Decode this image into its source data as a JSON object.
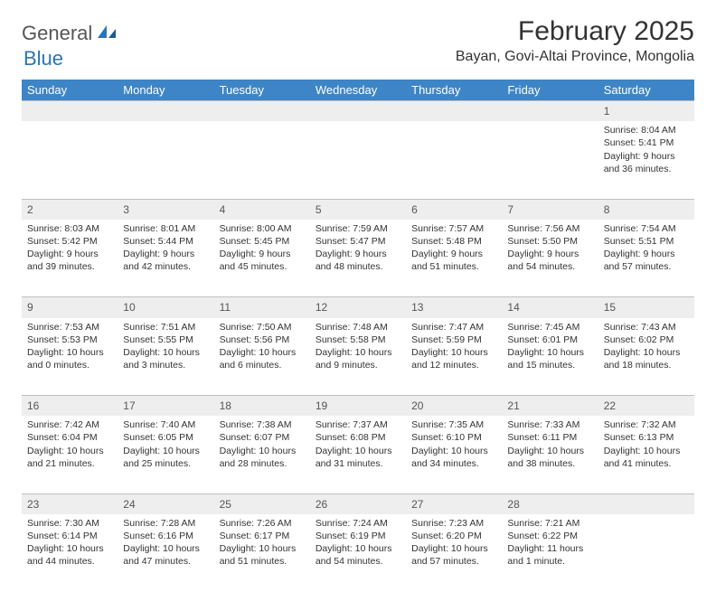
{
  "logo": {
    "text1": "General",
    "text2": "Blue"
  },
  "title": "February 2025",
  "location": "Bayan, Govi-Altai Province, Mongolia",
  "colors": {
    "header_bg": "#3d85c6",
    "header_text": "#ffffff",
    "daynum_bg": "#eeeeee",
    "border": "#bfbfbf",
    "logo_blue": "#2b73b8",
    "body_text": "#333333"
  },
  "weekdays": [
    "Sunday",
    "Monday",
    "Tuesday",
    "Wednesday",
    "Thursday",
    "Friday",
    "Saturday"
  ],
  "weeks": [
    {
      "nums": [
        "",
        "",
        "",
        "",
        "",
        "",
        "1"
      ],
      "cells": [
        null,
        null,
        null,
        null,
        null,
        null,
        {
          "sunrise": "Sunrise: 8:04 AM",
          "sunset": "Sunset: 5:41 PM",
          "daylight": "Daylight: 9 hours and 36 minutes."
        }
      ]
    },
    {
      "nums": [
        "2",
        "3",
        "4",
        "5",
        "6",
        "7",
        "8"
      ],
      "cells": [
        {
          "sunrise": "Sunrise: 8:03 AM",
          "sunset": "Sunset: 5:42 PM",
          "daylight": "Daylight: 9 hours and 39 minutes."
        },
        {
          "sunrise": "Sunrise: 8:01 AM",
          "sunset": "Sunset: 5:44 PM",
          "daylight": "Daylight: 9 hours and 42 minutes."
        },
        {
          "sunrise": "Sunrise: 8:00 AM",
          "sunset": "Sunset: 5:45 PM",
          "daylight": "Daylight: 9 hours and 45 minutes."
        },
        {
          "sunrise": "Sunrise: 7:59 AM",
          "sunset": "Sunset: 5:47 PM",
          "daylight": "Daylight: 9 hours and 48 minutes."
        },
        {
          "sunrise": "Sunrise: 7:57 AM",
          "sunset": "Sunset: 5:48 PM",
          "daylight": "Daylight: 9 hours and 51 minutes."
        },
        {
          "sunrise": "Sunrise: 7:56 AM",
          "sunset": "Sunset: 5:50 PM",
          "daylight": "Daylight: 9 hours and 54 minutes."
        },
        {
          "sunrise": "Sunrise: 7:54 AM",
          "sunset": "Sunset: 5:51 PM",
          "daylight": "Daylight: 9 hours and 57 minutes."
        }
      ]
    },
    {
      "nums": [
        "9",
        "10",
        "11",
        "12",
        "13",
        "14",
        "15"
      ],
      "cells": [
        {
          "sunrise": "Sunrise: 7:53 AM",
          "sunset": "Sunset: 5:53 PM",
          "daylight": "Daylight: 10 hours and 0 minutes."
        },
        {
          "sunrise": "Sunrise: 7:51 AM",
          "sunset": "Sunset: 5:55 PM",
          "daylight": "Daylight: 10 hours and 3 minutes."
        },
        {
          "sunrise": "Sunrise: 7:50 AM",
          "sunset": "Sunset: 5:56 PM",
          "daylight": "Daylight: 10 hours and 6 minutes."
        },
        {
          "sunrise": "Sunrise: 7:48 AM",
          "sunset": "Sunset: 5:58 PM",
          "daylight": "Daylight: 10 hours and 9 minutes."
        },
        {
          "sunrise": "Sunrise: 7:47 AM",
          "sunset": "Sunset: 5:59 PM",
          "daylight": "Daylight: 10 hours and 12 minutes."
        },
        {
          "sunrise": "Sunrise: 7:45 AM",
          "sunset": "Sunset: 6:01 PM",
          "daylight": "Daylight: 10 hours and 15 minutes."
        },
        {
          "sunrise": "Sunrise: 7:43 AM",
          "sunset": "Sunset: 6:02 PM",
          "daylight": "Daylight: 10 hours and 18 minutes."
        }
      ]
    },
    {
      "nums": [
        "16",
        "17",
        "18",
        "19",
        "20",
        "21",
        "22"
      ],
      "cells": [
        {
          "sunrise": "Sunrise: 7:42 AM",
          "sunset": "Sunset: 6:04 PM",
          "daylight": "Daylight: 10 hours and 21 minutes."
        },
        {
          "sunrise": "Sunrise: 7:40 AM",
          "sunset": "Sunset: 6:05 PM",
          "daylight": "Daylight: 10 hours and 25 minutes."
        },
        {
          "sunrise": "Sunrise: 7:38 AM",
          "sunset": "Sunset: 6:07 PM",
          "daylight": "Daylight: 10 hours and 28 minutes."
        },
        {
          "sunrise": "Sunrise: 7:37 AM",
          "sunset": "Sunset: 6:08 PM",
          "daylight": "Daylight: 10 hours and 31 minutes."
        },
        {
          "sunrise": "Sunrise: 7:35 AM",
          "sunset": "Sunset: 6:10 PM",
          "daylight": "Daylight: 10 hours and 34 minutes."
        },
        {
          "sunrise": "Sunrise: 7:33 AM",
          "sunset": "Sunset: 6:11 PM",
          "daylight": "Daylight: 10 hours and 38 minutes."
        },
        {
          "sunrise": "Sunrise: 7:32 AM",
          "sunset": "Sunset: 6:13 PM",
          "daylight": "Daylight: 10 hours and 41 minutes."
        }
      ]
    },
    {
      "nums": [
        "23",
        "24",
        "25",
        "26",
        "27",
        "28",
        ""
      ],
      "cells": [
        {
          "sunrise": "Sunrise: 7:30 AM",
          "sunset": "Sunset: 6:14 PM",
          "daylight": "Daylight: 10 hours and 44 minutes."
        },
        {
          "sunrise": "Sunrise: 7:28 AM",
          "sunset": "Sunset: 6:16 PM",
          "daylight": "Daylight: 10 hours and 47 minutes."
        },
        {
          "sunrise": "Sunrise: 7:26 AM",
          "sunset": "Sunset: 6:17 PM",
          "daylight": "Daylight: 10 hours and 51 minutes."
        },
        {
          "sunrise": "Sunrise: 7:24 AM",
          "sunset": "Sunset: 6:19 PM",
          "daylight": "Daylight: 10 hours and 54 minutes."
        },
        {
          "sunrise": "Sunrise: 7:23 AM",
          "sunset": "Sunset: 6:20 PM",
          "daylight": "Daylight: 10 hours and 57 minutes."
        },
        {
          "sunrise": "Sunrise: 7:21 AM",
          "sunset": "Sunset: 6:22 PM",
          "daylight": "Daylight: 11 hours and 1 minute."
        },
        null
      ]
    }
  ]
}
